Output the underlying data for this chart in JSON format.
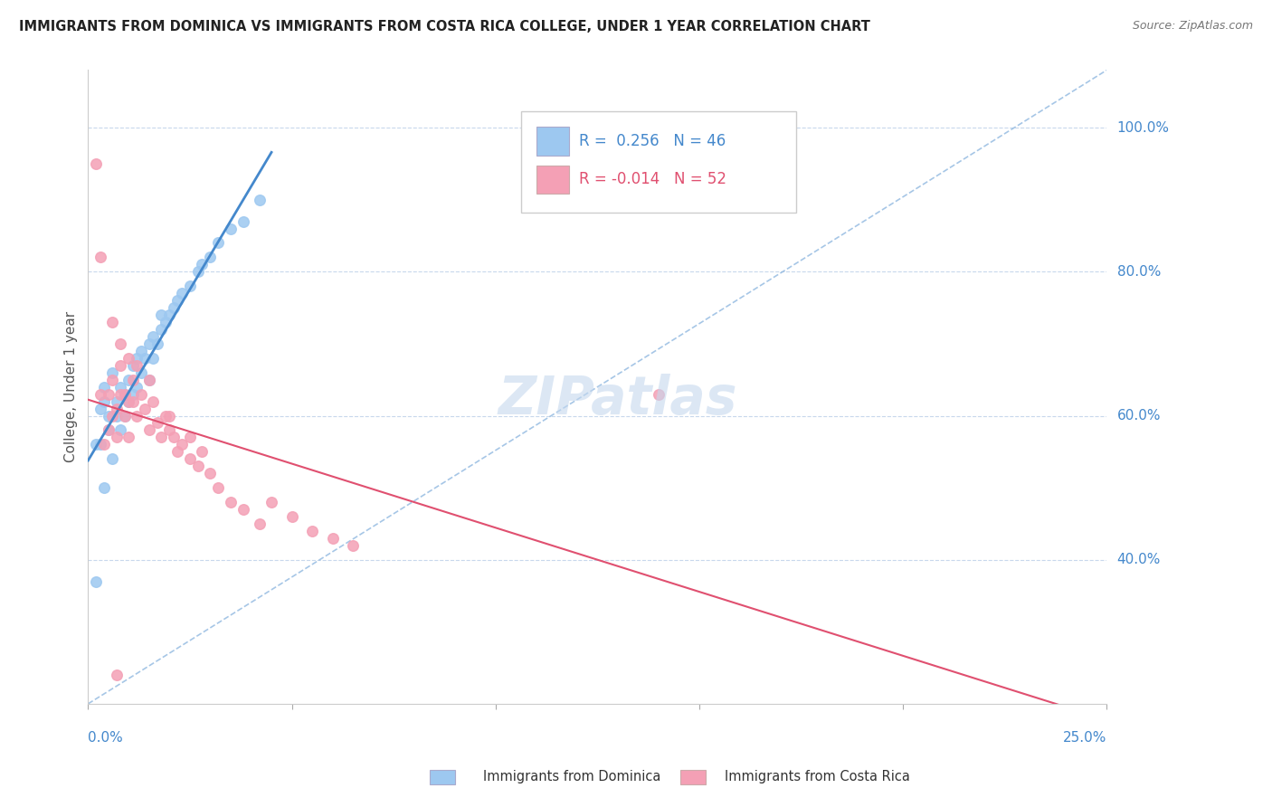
{
  "title": "IMMIGRANTS FROM DOMINICA VS IMMIGRANTS FROM COSTA RICA COLLEGE, UNDER 1 YEAR CORRELATION CHART",
  "source": "Source: ZipAtlas.com",
  "ylabel": "College, Under 1 year",
  "yaxis_ticks": [
    40.0,
    60.0,
    80.0,
    100.0
  ],
  "yaxis_labels": [
    "40.0%",
    "60.0%",
    "80.0%",
    "100.0%"
  ],
  "xlim": [
    0.0,
    0.25
  ],
  "ylim": [
    20.0,
    108.0
  ],
  "watermark": "ZIPatlas",
  "legend_r_dom": "0.256",
  "legend_n_dom": "46",
  "legend_r_cr": "-0.014",
  "legend_n_cr": "52",
  "dominica_color": "#9dc8f0",
  "costarica_color": "#f4a0b5",
  "dominica_line_color": "#4488cc",
  "costarica_line_color": "#e05070",
  "dashed_line_color": "#90b8e0",
  "grid_color": "#c8d8ec",
  "dot_size": 70,
  "dominica_x": [
    0.002,
    0.003,
    0.004,
    0.004,
    0.005,
    0.005,
    0.006,
    0.007,
    0.007,
    0.008,
    0.008,
    0.009,
    0.009,
    0.01,
    0.01,
    0.011,
    0.011,
    0.012,
    0.012,
    0.013,
    0.013,
    0.014,
    0.015,
    0.015,
    0.016,
    0.016,
    0.017,
    0.018,
    0.018,
    0.019,
    0.02,
    0.021,
    0.022,
    0.023,
    0.025,
    0.027,
    0.028,
    0.03,
    0.032,
    0.035,
    0.038,
    0.042,
    0.002,
    0.003,
    0.004,
    0.006
  ],
  "dominica_y": [
    37.0,
    56.0,
    50.0,
    62.0,
    58.0,
    60.0,
    54.0,
    60.0,
    62.0,
    58.0,
    64.0,
    60.0,
    63.0,
    62.0,
    65.0,
    63.0,
    67.0,
    64.0,
    68.0,
    66.0,
    69.0,
    68.0,
    65.0,
    70.0,
    68.0,
    71.0,
    70.0,
    72.0,
    74.0,
    73.0,
    74.0,
    75.0,
    76.0,
    77.0,
    78.0,
    80.0,
    81.0,
    82.0,
    84.0,
    86.0,
    87.0,
    90.0,
    56.0,
    61.0,
    64.0,
    66.0
  ],
  "costarica_x": [
    0.002,
    0.003,
    0.004,
    0.005,
    0.005,
    0.006,
    0.006,
    0.007,
    0.007,
    0.008,
    0.008,
    0.009,
    0.009,
    0.01,
    0.01,
    0.011,
    0.011,
    0.012,
    0.013,
    0.014,
    0.015,
    0.016,
    0.017,
    0.018,
    0.019,
    0.02,
    0.021,
    0.022,
    0.023,
    0.025,
    0.027,
    0.028,
    0.03,
    0.032,
    0.035,
    0.038,
    0.042,
    0.045,
    0.05,
    0.055,
    0.06,
    0.065,
    0.003,
    0.006,
    0.008,
    0.01,
    0.012,
    0.015,
    0.02,
    0.025,
    0.14,
    0.007
  ],
  "costarica_y": [
    95.0,
    63.0,
    56.0,
    58.0,
    63.0,
    60.0,
    65.0,
    57.0,
    61.0,
    63.0,
    67.0,
    60.0,
    63.0,
    62.0,
    57.0,
    65.0,
    62.0,
    60.0,
    63.0,
    61.0,
    58.0,
    62.0,
    59.0,
    57.0,
    60.0,
    58.0,
    57.0,
    55.0,
    56.0,
    54.0,
    53.0,
    55.0,
    52.0,
    50.0,
    48.0,
    47.0,
    45.0,
    48.0,
    46.0,
    44.0,
    43.0,
    42.0,
    82.0,
    73.0,
    70.0,
    68.0,
    67.0,
    65.0,
    60.0,
    57.0,
    63.0,
    24.0
  ]
}
